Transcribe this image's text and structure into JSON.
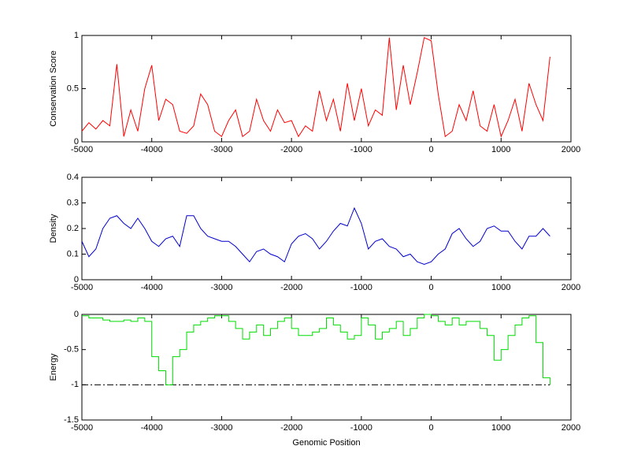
{
  "chart_data": [
    {
      "type": "line",
      "ylabel": "Conservation Score",
      "color": "#ff0000",
      "x": [
        -5000,
        -4900,
        -4800,
        -4700,
        -4600,
        -4500,
        -4400,
        -4300,
        -4200,
        -4100,
        -4000,
        -3900,
        -3800,
        -3700,
        -3600,
        -3500,
        -3400,
        -3300,
        -3200,
        -3100,
        -3000,
        -2900,
        -2800,
        -2700,
        -2600,
        -2500,
        -2400,
        -2300,
        -2200,
        -2100,
        -2000,
        -1900,
        -1800,
        -1700,
        -1600,
        -1500,
        -1400,
        -1300,
        -1200,
        -1100,
        -1000,
        -900,
        -800,
        -700,
        -600,
        -500,
        -400,
        -300,
        -200,
        -100,
        0,
        100,
        200,
        300,
        400,
        500,
        600,
        700,
        800,
        900,
        1000,
        1100,
        1200,
        1300,
        1400,
        1500,
        1600,
        1700
      ],
      "values": [
        0.1,
        0.18,
        0.12,
        0.2,
        0.15,
        0.73,
        0.05,
        0.3,
        0.1,
        0.5,
        0.72,
        0.2,
        0.4,
        0.35,
        0.1,
        0.08,
        0.15,
        0.45,
        0.35,
        0.1,
        0.05,
        0.2,
        0.3,
        0.05,
        0.1,
        0.4,
        0.2,
        0.1,
        0.3,
        0.18,
        0.2,
        0.05,
        0.15,
        0.1,
        0.48,
        0.2,
        0.4,
        0.1,
        0.55,
        0.2,
        0.5,
        0.15,
        0.3,
        0.25,
        0.98,
        0.3,
        0.72,
        0.35,
        0.65,
        0.98,
        0.95,
        0.45,
        0.05,
        0.1,
        0.35,
        0.2,
        0.48,
        0.15,
        0.1,
        0.35,
        0.05,
        0.2,
        0.4,
        0.1,
        0.55,
        0.35,
        0.2,
        0.8
      ],
      "xlim": [
        -5000,
        2000
      ],
      "xticks": [
        -5000,
        -4000,
        -3000,
        -2000,
        -1000,
        0,
        1000,
        2000
      ],
      "ylim": [
        0,
        1
      ],
      "yticks": [
        0,
        0.5,
        1
      ]
    },
    {
      "type": "line",
      "ylabel": "Density",
      "color": "#0000cc",
      "x": [
        -5000,
        -4900,
        -4800,
        -4700,
        -4600,
        -4500,
        -4400,
        -4300,
        -4200,
        -4100,
        -4000,
        -3900,
        -3800,
        -3700,
        -3600,
        -3500,
        -3400,
        -3300,
        -3200,
        -3100,
        -3000,
        -2900,
        -2800,
        -2700,
        -2600,
        -2500,
        -2400,
        -2300,
        -2200,
        -2100,
        -2000,
        -1900,
        -1800,
        -1700,
        -1600,
        -1500,
        -1400,
        -1300,
        -1200,
        -1100,
        -1000,
        -900,
        -800,
        -700,
        -600,
        -500,
        -400,
        -300,
        -200,
        -100,
        0,
        100,
        200,
        300,
        400,
        500,
        600,
        700,
        800,
        900,
        1000,
        1100,
        1200,
        1300,
        1400,
        1500,
        1600,
        1700
      ],
      "values": [
        0.15,
        0.09,
        0.12,
        0.2,
        0.24,
        0.25,
        0.22,
        0.2,
        0.24,
        0.2,
        0.15,
        0.13,
        0.16,
        0.17,
        0.13,
        0.25,
        0.25,
        0.2,
        0.17,
        0.16,
        0.15,
        0.15,
        0.13,
        0.1,
        0.07,
        0.11,
        0.12,
        0.1,
        0.09,
        0.07,
        0.14,
        0.17,
        0.18,
        0.16,
        0.12,
        0.15,
        0.19,
        0.22,
        0.21,
        0.28,
        0.22,
        0.12,
        0.15,
        0.16,
        0.13,
        0.12,
        0.09,
        0.1,
        0.07,
        0.06,
        0.07,
        0.1,
        0.12,
        0.18,
        0.2,
        0.16,
        0.13,
        0.15,
        0.2,
        0.21,
        0.19,
        0.19,
        0.15,
        0.12,
        0.17,
        0.17,
        0.2,
        0.17
      ],
      "xlim": [
        -5000,
        2000
      ],
      "xticks": [
        -5000,
        -4000,
        -3000,
        -2000,
        -1000,
        0,
        1000,
        2000
      ],
      "ylim": [
        0,
        0.4
      ],
      "yticks": [
        0,
        0.1,
        0.2,
        0.3,
        0.4
      ]
    },
    {
      "type": "line",
      "step": true,
      "xlabel": "Genomic Position",
      "ylabel": "Energy",
      "color": "#00dd00",
      "x": [
        -5000,
        -4900,
        -4800,
        -4700,
        -4600,
        -4500,
        -4400,
        -4300,
        -4200,
        -4100,
        -4000,
        -3900,
        -3800,
        -3700,
        -3600,
        -3500,
        -3400,
        -3300,
        -3200,
        -3100,
        -3000,
        -2900,
        -2800,
        -2700,
        -2600,
        -2500,
        -2400,
        -2300,
        -2200,
        -2100,
        -2000,
        -1900,
        -1800,
        -1700,
        -1600,
        -1500,
        -1400,
        -1300,
        -1200,
        -1100,
        -1000,
        -900,
        -800,
        -700,
        -600,
        -500,
        -400,
        -300,
        -200,
        -100,
        0,
        100,
        200,
        300,
        400,
        500,
        600,
        700,
        800,
        900,
        1000,
        1100,
        1200,
        1300,
        1400,
        1500,
        1600,
        1700
      ],
      "values": [
        -0.02,
        -0.05,
        -0.05,
        -0.08,
        -0.1,
        -0.1,
        -0.08,
        -0.1,
        -0.05,
        -0.1,
        -0.6,
        -0.8,
        -1.0,
        -0.6,
        -0.5,
        -0.25,
        -0.15,
        -0.1,
        -0.05,
        -0.02,
        -0.02,
        -0.1,
        -0.2,
        -0.35,
        -0.25,
        -0.15,
        -0.3,
        -0.2,
        -0.1,
        -0.05,
        -0.2,
        -0.3,
        -0.3,
        -0.25,
        -0.2,
        -0.05,
        -0.15,
        -0.25,
        -0.35,
        -0.3,
        -0.05,
        -0.15,
        -0.35,
        -0.25,
        -0.2,
        -0.1,
        -0.3,
        -0.2,
        -0.05,
        0,
        -0.02,
        -0.1,
        -0.15,
        -0.05,
        -0.15,
        -0.1,
        -0.1,
        -0.2,
        -0.3,
        -0.65,
        -0.5,
        -0.3,
        -0.15,
        -0.05,
        -0.02,
        -0.4,
        -0.9,
        -1.0
      ],
      "hline": -1,
      "xlim": [
        -5000,
        2000
      ],
      "xticks": [
        -5000,
        -4000,
        -3000,
        -2000,
        -1000,
        0,
        1000,
        2000
      ],
      "ylim": [
        -1.5,
        0
      ],
      "yticks": [
        -1.5,
        -1,
        -0.5,
        0
      ]
    }
  ]
}
